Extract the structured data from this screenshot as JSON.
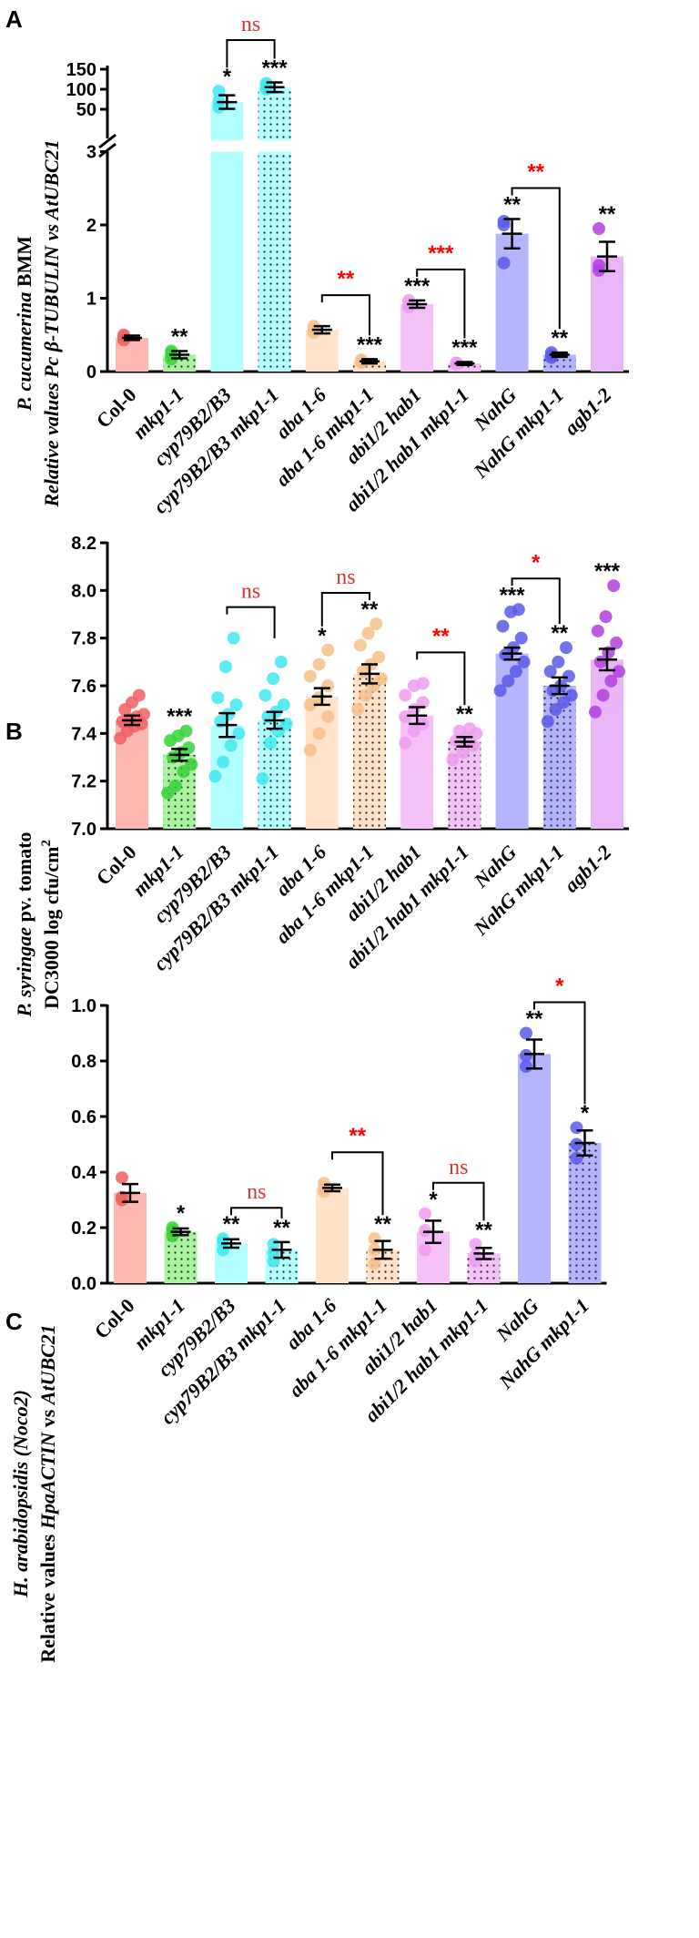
{
  "figure": {
    "panels": [
      "A",
      "B",
      "C"
    ]
  },
  "chart_data": [
    {
      "panel": "A",
      "type": "bar",
      "ylabel": "P. cucumerina BMM Relative values Pc β-TUBULIN vs AtUBC21",
      "ylabel_parts": [
        {
          "text": "P. cucumerina",
          "italic": true
        },
        {
          "text": " BMM",
          "italic": false
        }
      ],
      "ylabel_line2": "Relative values Pc β-TUBULIN vs AtUBC21",
      "y_segments": [
        {
          "range": [
            0,
            3
          ],
          "ticks": [
            "0",
            "1",
            "2",
            "3"
          ]
        },
        {
          "range": [
            40,
            155
          ],
          "ticks": [
            "50",
            "100",
            "150"
          ]
        }
      ],
      "categories": [
        "Col-0",
        "mkp1-1",
        "cyp79B2/B3",
        "cyp79B2/B3 mkp1-1",
        "aba 1-6",
        "aba 1-6 mkp1-1",
        "abi1/2 hab1",
        "abi1/2 hab1 mkp1-1",
        "NahG",
        "NahG mkp1-1",
        "agb1-2"
      ],
      "values": [
        0.46,
        0.23,
        68,
        105,
        0.57,
        0.14,
        0.92,
        0.11,
        1.88,
        0.23,
        1.57
      ],
      "errors": [
        0.03,
        0.05,
        17,
        12,
        0.05,
        0.03,
        0.05,
        0.02,
        0.2,
        0.03,
        0.2
      ],
      "points": [
        [
          0.43,
          0.47,
          0.5
        ],
        [
          0.17,
          0.24,
          0.28
        ],
        [
          55,
          70,
          95
        ],
        [
          100,
          110,
          115
        ],
        [
          0.53,
          0.58,
          0.62
        ],
        [
          0.12,
          0.14,
          0.16
        ],
        [
          0.88,
          0.92,
          0.97
        ],
        [
          0.1,
          0.11,
          0.12
        ],
        [
          1.48,
          2.0,
          2.05
        ],
        [
          0.19,
          0.22,
          0.26
        ],
        [
          1.38,
          1.45,
          1.95
        ]
      ],
      "significance": [
        "",
        "**",
        "*",
        "***",
        "",
        "***",
        "***",
        "***",
        "**",
        "**",
        "**"
      ],
      "comparisons": [
        {
          "from": 2,
          "to": 3,
          "label": "ns"
        },
        {
          "from": 4,
          "to": 5,
          "label": "**"
        },
        {
          "from": 6,
          "to": 7,
          "label": "***"
        },
        {
          "from": 8,
          "to": 9,
          "label": "**"
        }
      ]
    },
    {
      "panel": "B",
      "type": "bar",
      "ylabel": "P. syringae pv. tomato DC3000 log cfu/cm2",
      "ylabel_parts": [
        {
          "text": "P. syringae",
          "italic": true
        },
        {
          "text": " pv. tomato",
          "italic": false
        }
      ],
      "ylabel_line2": "DC3000 log cfu/cm",
      "ylabel_sup": "2",
      "ylim": [
        7.0,
        8.2
      ],
      "yticks": [
        "7.0",
        "7.2",
        "7.4",
        "7.6",
        "7.8",
        "8.0",
        "8.2"
      ],
      "categories": [
        "Col-0",
        "mkp1-1",
        "cyp79B2/B3",
        "cyp79B2/B3 mkp1-1",
        "aba 1-6",
        "aba 1-6 mkp1-1",
        "abi1/2 hab1",
        "abi1/2 hab1 mkp1-1",
        "NahG",
        "NahG mkp1-1",
        "agb1-2"
      ],
      "values": [
        7.455,
        7.31,
        7.435,
        7.455,
        7.555,
        7.65,
        7.475,
        7.365,
        7.735,
        7.6,
        7.71
      ],
      "errors": [
        0.02,
        0.025,
        0.05,
        0.035,
        0.035,
        0.04,
        0.035,
        0.02,
        0.025,
        0.035,
        0.045
      ],
      "points": [
        [
          7.38,
          7.41,
          7.43,
          7.44,
          7.45,
          7.46,
          7.47,
          7.48,
          7.5,
          7.53,
          7.56
        ],
        [
          7.15,
          7.18,
          7.24,
          7.27,
          7.3,
          7.32,
          7.34,
          7.37,
          7.39,
          7.41
        ],
        [
          7.22,
          7.28,
          7.35,
          7.4,
          7.45,
          7.48,
          7.52,
          7.55,
          7.68,
          7.8
        ],
        [
          7.21,
          7.36,
          7.41,
          7.44,
          7.47,
          7.49,
          7.52,
          7.56,
          7.63,
          7.7
        ],
        [
          7.33,
          7.4,
          7.47,
          7.52,
          7.55,
          7.6,
          7.64,
          7.69,
          7.75
        ],
        [
          7.5,
          7.56,
          7.6,
          7.63,
          7.66,
          7.69,
          7.72,
          7.77,
          7.82,
          7.86
        ],
        [
          7.36,
          7.41,
          7.44,
          7.47,
          7.5,
          7.53,
          7.56,
          7.6,
          7.61
        ],
        [
          7.29,
          7.32,
          7.35,
          7.37,
          7.38,
          7.4,
          7.41,
          7.42
        ],
        [
          7.58,
          7.62,
          7.66,
          7.7,
          7.73,
          7.76,
          7.8,
          7.85,
          7.91,
          7.92
        ],
        [
          7.45,
          7.5,
          7.53,
          7.56,
          7.58,
          7.6,
          7.64,
          7.66,
          7.7,
          7.76
        ],
        [
          7.49,
          7.56,
          7.62,
          7.66,
          7.7,
          7.74,
          7.78,
          7.83,
          7.89,
          8.02
        ]
      ],
      "significance": [
        "",
        "***",
        "",
        "",
        "*",
        "**",
        "",
        "**",
        "***",
        "**",
        "***"
      ],
      "comparisons": [
        {
          "from": 2,
          "to": 3,
          "label": "ns"
        },
        {
          "from": 4,
          "to": 5,
          "label": "ns"
        },
        {
          "from": 6,
          "to": 7,
          "label": "**"
        },
        {
          "from": 8,
          "to": 9,
          "label": "*"
        }
      ]
    },
    {
      "panel": "C",
      "type": "bar",
      "ylabel": "H. arabidopsidis (Noco2) Relative values HpaACTIN vs AtUBC21",
      "ylabel_parts": [
        {
          "text": "H. arabidopsidis (Noco2)",
          "italic": true
        }
      ],
      "ylabel_line2_parts": [
        {
          "text": "Relative values ",
          "italic": false
        },
        {
          "text": "HpaACTIN",
          "italic": true
        },
        {
          "text": " vs ",
          "italic": false
        },
        {
          "text": "AtUBC21",
          "italic": true
        }
      ],
      "ylim": [
        0.0,
        1.0
      ],
      "yticks": [
        "0.0",
        "0.2",
        "0.4",
        "0.6",
        "0.8",
        "1.0"
      ],
      "categories": [
        "Col-0",
        "mkp1-1",
        "cyp79B2/B3",
        "cyp79B2/B3 mkp1-1",
        "aba 1-6",
        "aba 1-6 mkp1-1",
        "abi1/2 hab1",
        "abi1/2 hab1 mkp1-1",
        "NahG",
        "NahG mkp1-1"
      ],
      "values": [
        0.325,
        0.185,
        0.143,
        0.12,
        0.343,
        0.12,
        0.185,
        0.107,
        0.825,
        0.505
      ],
      "errors": [
        0.032,
        0.012,
        0.015,
        0.028,
        0.012,
        0.032,
        0.04,
        0.02,
        0.052,
        0.045
      ],
      "points": [
        [
          0.3,
          0.31,
          0.38
        ],
        [
          0.17,
          0.19,
          0.2
        ],
        [
          0.12,
          0.15,
          0.16
        ],
        [
          0.08,
          0.11,
          0.14
        ],
        [
          0.33,
          0.34,
          0.36
        ],
        [
          0.07,
          0.12,
          0.16
        ],
        [
          0.12,
          0.19,
          0.25
        ],
        [
          0.08,
          0.1,
          0.14
        ],
        [
          0.78,
          0.82,
          0.9
        ],
        [
          0.45,
          0.5,
          0.56
        ]
      ],
      "significance": [
        "",
        "*",
        "**",
        "**",
        "",
        "**",
        "*",
        "**",
        "**",
        "*"
      ],
      "comparisons": [
        {
          "from": 2,
          "to": 3,
          "label": "ns"
        },
        {
          "from": 4,
          "to": 5,
          "label": "**"
        },
        {
          "from": 6,
          "to": 7,
          "label": "ns"
        },
        {
          "from": 8,
          "to": 9,
          "label": "*"
        }
      ]
    }
  ],
  "colors": {
    "bars": [
      "#ffb7b2",
      "#a8f2a0",
      "#b3ffff",
      "#b3ffff",
      "#ffe2c7",
      "#ffe2c7",
      "#f4c2f8",
      "#f4c2f8",
      "#b4b4ff",
      "#b4b4ff",
      "#e8b5f7"
    ],
    "points": [
      "#f26060",
      "#34d434",
      "#40e8f0",
      "#40e8f0",
      "#f7c08a",
      "#f7c08a",
      "#ed9cf0",
      "#ed9cf0",
      "#5a5aea",
      "#5a5aea",
      "#b23ee0"
    ],
    "dotted": [
      false,
      true,
      false,
      true,
      false,
      true,
      false,
      true,
      false,
      true,
      false
    ],
    "comparison_ns": "#e03030",
    "comparison_sig": "#ff0000"
  }
}
